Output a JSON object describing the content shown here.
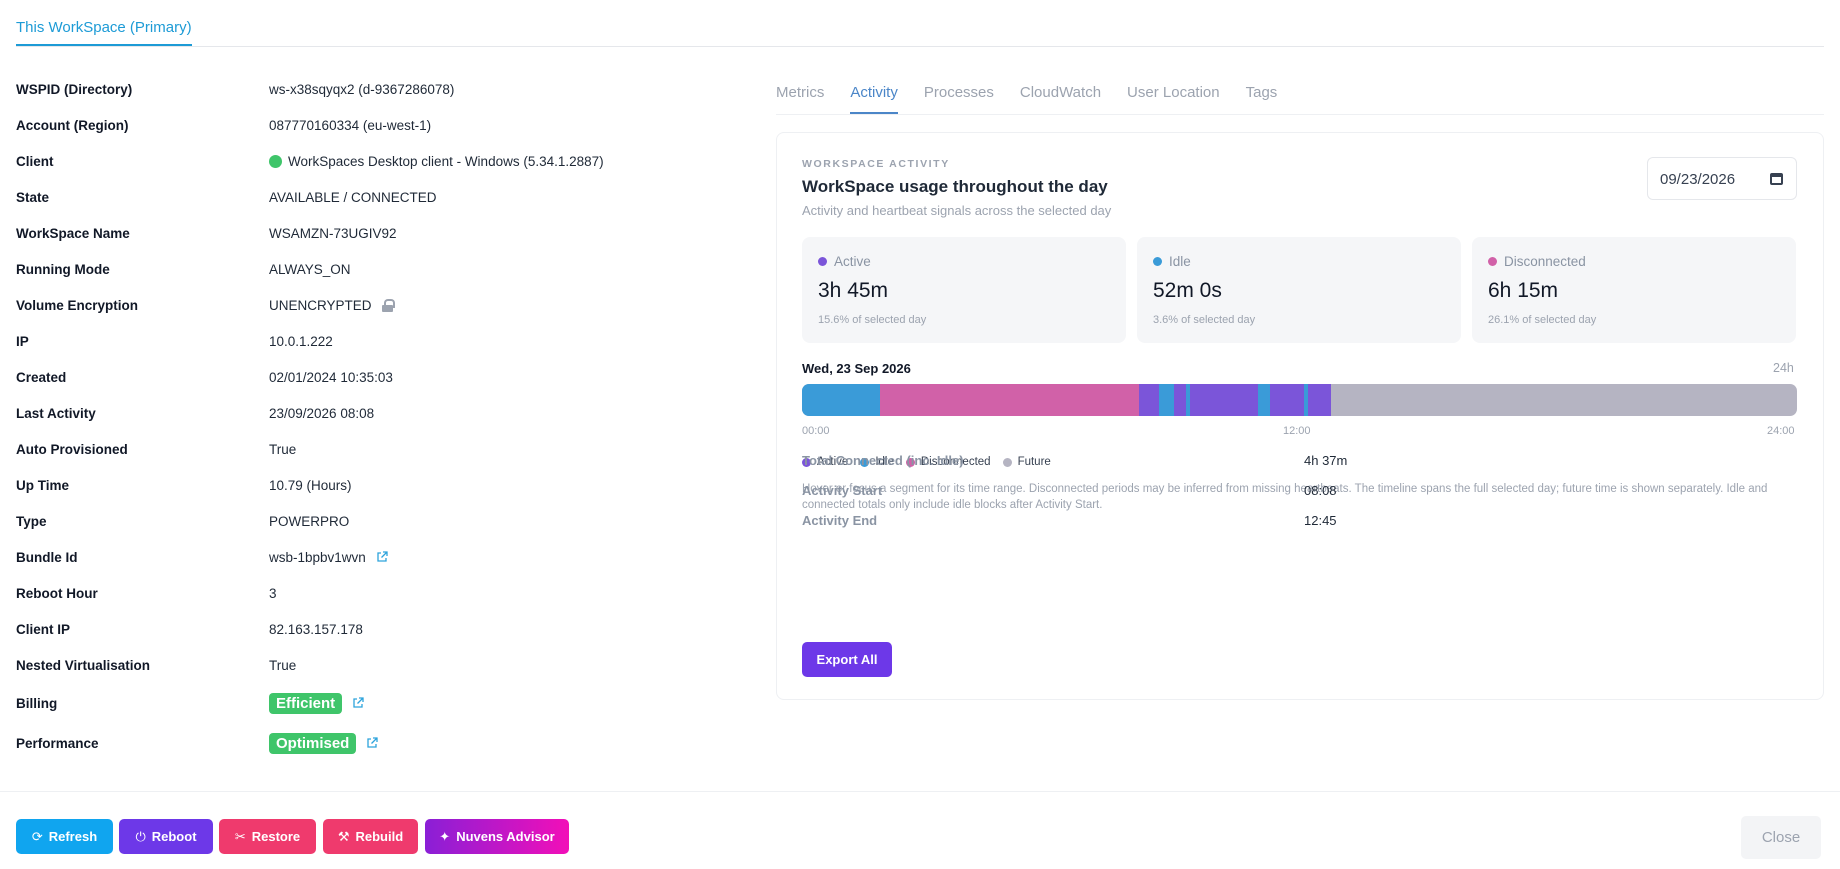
{
  "top_tab": "This WorkSpace (Primary)",
  "details": [
    {
      "label": "WSPID (Directory)",
      "value": "ws-x38sqyqx2 (d-9367286078)"
    },
    {
      "label": "Account (Region)",
      "value": "087770160334 (eu-west-1)"
    },
    {
      "label": "Client",
      "value": "WorkSpaces Desktop client - Windows (5.34.1.2887)"
    },
    {
      "label": "State",
      "value": "AVAILABLE / CONNECTED"
    },
    {
      "label": "WorkSpace Name",
      "value": "WSAMZN-73UGIV92"
    },
    {
      "label": "Running Mode",
      "value": "ALWAYS_ON"
    },
    {
      "label": "Volume Encryption",
      "value": "UNENCRYPTED"
    },
    {
      "label": "IP",
      "value": "10.0.1.222"
    },
    {
      "label": "Created",
      "value": "02/01/2024 10:35:03"
    },
    {
      "label": "Last Activity",
      "value": "23/09/2026 08:08"
    },
    {
      "label": "Auto Provisioned",
      "value": "True"
    },
    {
      "label": "Up Time",
      "value": "10.79 (Hours)"
    },
    {
      "label": "Type",
      "value": "POWERPRO"
    },
    {
      "label": "Bundle Id",
      "value": "wsb-1bpbv1wvn"
    },
    {
      "label": "Reboot Hour",
      "value": "3"
    },
    {
      "label": "Client IP",
      "value": "82.163.157.178"
    },
    {
      "label": "Nested Virtualisation",
      "value": "True"
    },
    {
      "label": "Billing",
      "value": "Efficient"
    },
    {
      "label": "Performance",
      "value": "Optimised"
    }
  ],
  "right_tabs": [
    "Metrics",
    "Activity",
    "Processes",
    "CloudWatch",
    "User Location",
    "Tags"
  ],
  "activity": {
    "eyebrow": "WORKSPACE ACTIVITY",
    "title": "WorkSpace usage throughout the day",
    "subtitle": "Activity and heartbeat signals across the selected day",
    "date_value": "09/23/2026",
    "stats": [
      {
        "label": "Active",
        "value": "3h 45m",
        "percent": "15.6% of selected day",
        "color": "#7b55d9"
      },
      {
        "label": "Idle",
        "value": "52m 0s",
        "percent": "3.6% of selected day",
        "color": "#3a9bd8"
      },
      {
        "label": "Disconnected",
        "value": "6h 15m",
        "percent": "26.1% of selected day",
        "color": "#d161a8"
      }
    ],
    "timeline_date": "Wed, 23 Sep 2026",
    "timeline_span": "24h",
    "axis": {
      "start": "00:00",
      "mid": "12:00",
      "end": "24:00"
    },
    "segments": [
      {
        "type": "idle",
        "start": 0.0,
        "end": 1.87
      },
      {
        "type": "disconnected",
        "start": 1.87,
        "end": 8.13
      },
      {
        "type": "active",
        "start": 8.13,
        "end": 8.6
      },
      {
        "type": "idle",
        "start": 8.6,
        "end": 8.98
      },
      {
        "type": "active",
        "start": 8.98,
        "end": 9.27
      },
      {
        "type": "idle",
        "start": 9.27,
        "end": 9.35
      },
      {
        "type": "active",
        "start": 9.35,
        "end": 11.0
      },
      {
        "type": "idle",
        "start": 11.0,
        "end": 11.3
      },
      {
        "type": "active",
        "start": 11.3,
        "end": 12.1
      },
      {
        "type": "idle",
        "start": 12.1,
        "end": 12.2
      },
      {
        "type": "active",
        "start": 12.2,
        "end": 12.75
      }
    ],
    "segment_colors": {
      "active": "#7b55d9",
      "idle": "#3a9bd8",
      "disconnected": "#d161a8",
      "future": "#b5b4c2"
    },
    "legend": [
      "Active",
      "Idle",
      "Disconnected",
      "Future"
    ],
    "note": "Hover or focus a segment for its time range. Disconnected periods may be inferred from missing heartbeats. The timeline spans the full selected day; future time is shown separately. Idle and connected totals only include idle blocks after Activity Start.",
    "summary": [
      {
        "label": "Total Connected (inc. Idle)",
        "value": "4h 37m"
      },
      {
        "label": "Activity Start",
        "value": "08:08"
      },
      {
        "label": "Activity End",
        "value": "12:45"
      }
    ],
    "export_label": "Export All"
  },
  "footer": {
    "refresh": "Refresh",
    "reboot": "Reboot",
    "restore": "Restore",
    "rebuild": "Rebuild",
    "advisor": "Nuvens Advisor",
    "close": "Close"
  }
}
